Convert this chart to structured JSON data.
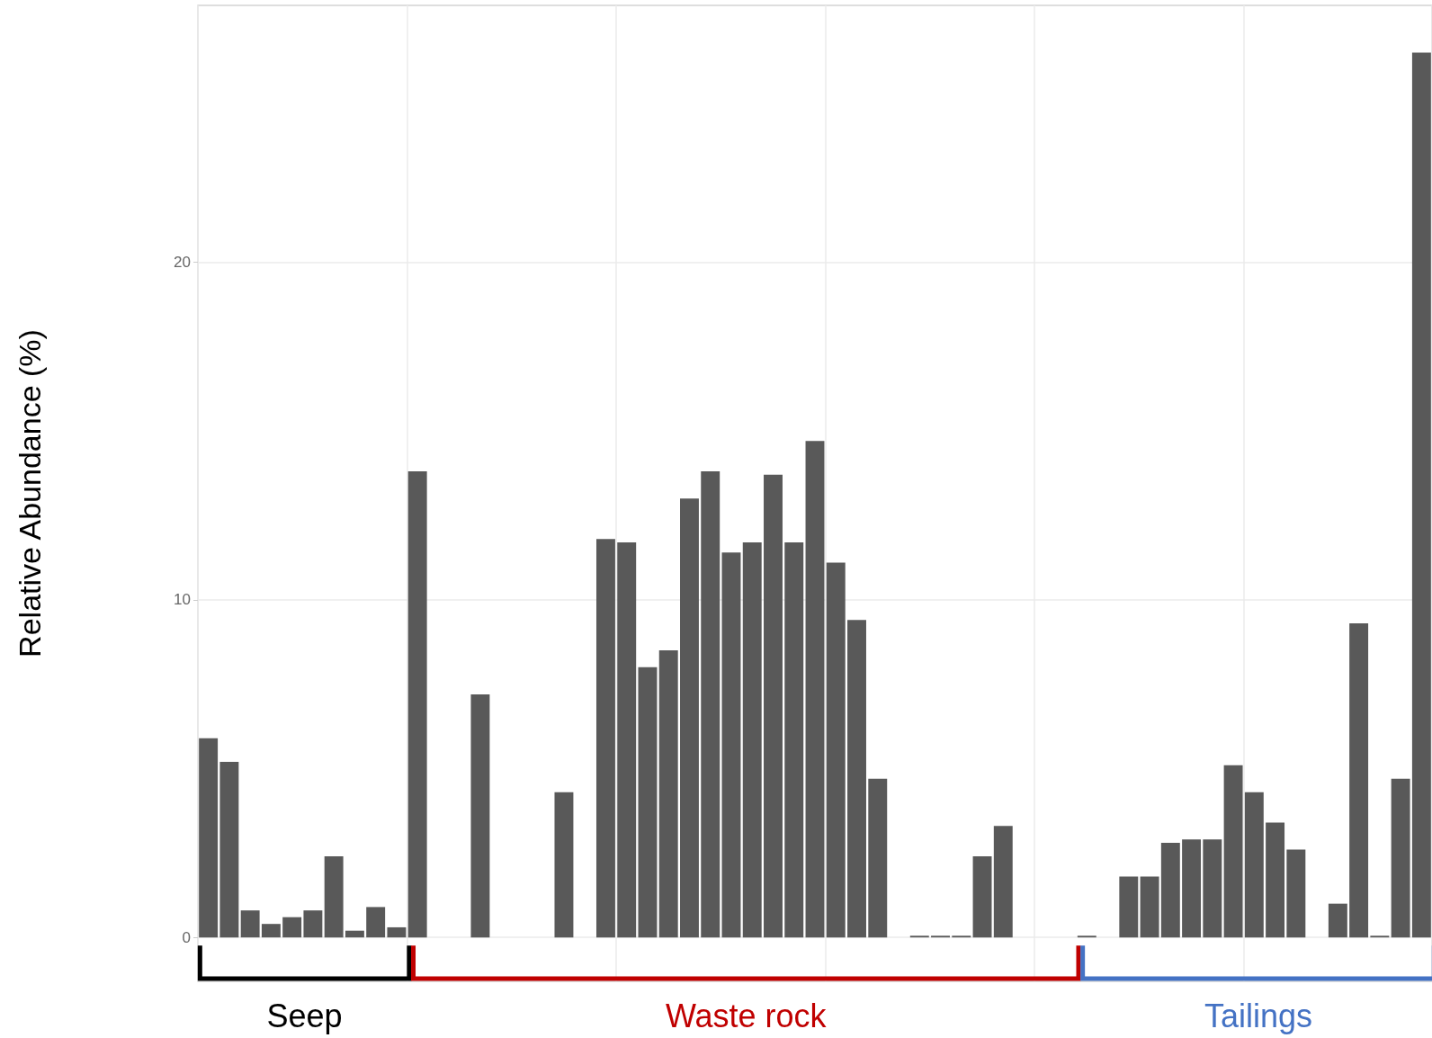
{
  "chart_data": {
    "type": "bar",
    "ylabel": "Relative Abundance (%)",
    "categories": [
      null,
      null,
      null,
      null,
      null,
      null,
      null,
      null,
      null,
      null,
      null,
      null,
      null,
      null,
      null,
      null,
      null,
      null,
      null,
      null,
      null,
      null,
      null,
      null,
      null,
      null,
      null,
      null,
      null,
      null,
      null,
      null,
      null,
      null,
      null,
      null,
      null,
      null,
      null,
      null,
      null,
      null,
      null,
      null,
      null,
      null,
      null,
      null,
      null,
      null,
      null,
      null,
      null,
      null,
      null,
      null,
      null,
      null,
      null
    ],
    "values": [
      5.9,
      5.2,
      0.8,
      0.4,
      0.6,
      0.8,
      2.4,
      0.2,
      0.9,
      0.3,
      13.8,
      0,
      0,
      7.2,
      0,
      0,
      0,
      4.3,
      0,
      11.8,
      11.7,
      8.0,
      8.5,
      13.0,
      13.8,
      11.4,
      11.7,
      13.7,
      11.7,
      14.7,
      11.1,
      9.4,
      4.7,
      0,
      0.05,
      0.05,
      0.05,
      2.4,
      3.3,
      0,
      0,
      0,
      0.05,
      0,
      1.8,
      1.8,
      2.8,
      2.9,
      2.9,
      5.1,
      4.3,
      3.4,
      2.6,
      0,
      1.0,
      9.3,
      0.05,
      4.7,
      26.2
    ],
    "color": "#595959",
    "ylim": [
      -1.3,
      27.6
    ],
    "yticks": [
      0,
      10,
      20
    ],
    "grid": true,
    "annotations": [
      "Seep",
      "Waste rock",
      "Tailings"
    ]
  }
}
